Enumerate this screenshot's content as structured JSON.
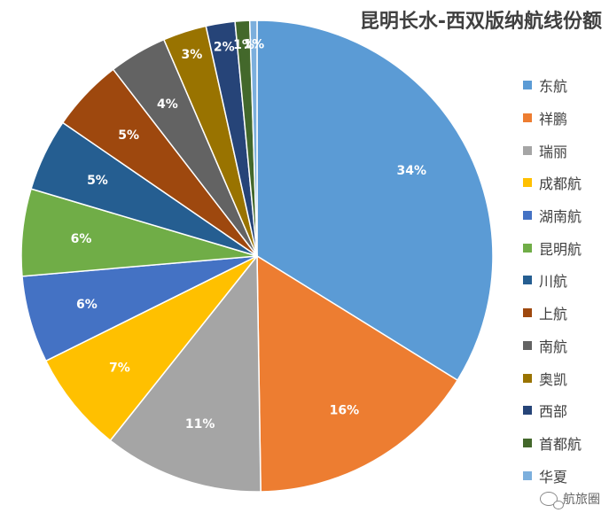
{
  "chart_data": {
    "type": "pie",
    "title": "昆明长水-西双版纳航线份额",
    "legend_position": "right",
    "slices": [
      {
        "name": "东航",
        "value": 34,
        "label": "34%",
        "color": "#5B9BD5"
      },
      {
        "name": "祥鹏",
        "value": 16,
        "label": "16%",
        "color": "#ED7D31"
      },
      {
        "name": "瑞丽",
        "value": 11,
        "label": "11%",
        "color": "#A5A5A5"
      },
      {
        "name": "成都航",
        "value": 7,
        "label": "7%",
        "color": "#FFC000"
      },
      {
        "name": "湖南航",
        "value": 6,
        "label": "6%",
        "color": "#4472C4"
      },
      {
        "name": "昆明航",
        "value": 6,
        "label": "6%",
        "color": "#70AD47"
      },
      {
        "name": "川航",
        "value": 5,
        "label": "5%",
        "color": "#255E91"
      },
      {
        "name": "上航",
        "value": 5,
        "label": "5%",
        "color": "#9E480E"
      },
      {
        "name": "南航",
        "value": 4,
        "label": "4%",
        "color": "#636363"
      },
      {
        "name": "奥凯",
        "value": 3,
        "label": "3%",
        "color": "#997300"
      },
      {
        "name": "西部",
        "value": 2,
        "label": "2%",
        "color": "#264478"
      },
      {
        "name": "首都航",
        "value": 1,
        "label": "1%",
        "color": "#43682B"
      },
      {
        "name": "华夏",
        "value": 0.5,
        "label": "1%",
        "color": "#7CAFDD"
      }
    ]
  },
  "watermark": {
    "text": "航旅圈",
    "icon": "wechat-icon"
  }
}
